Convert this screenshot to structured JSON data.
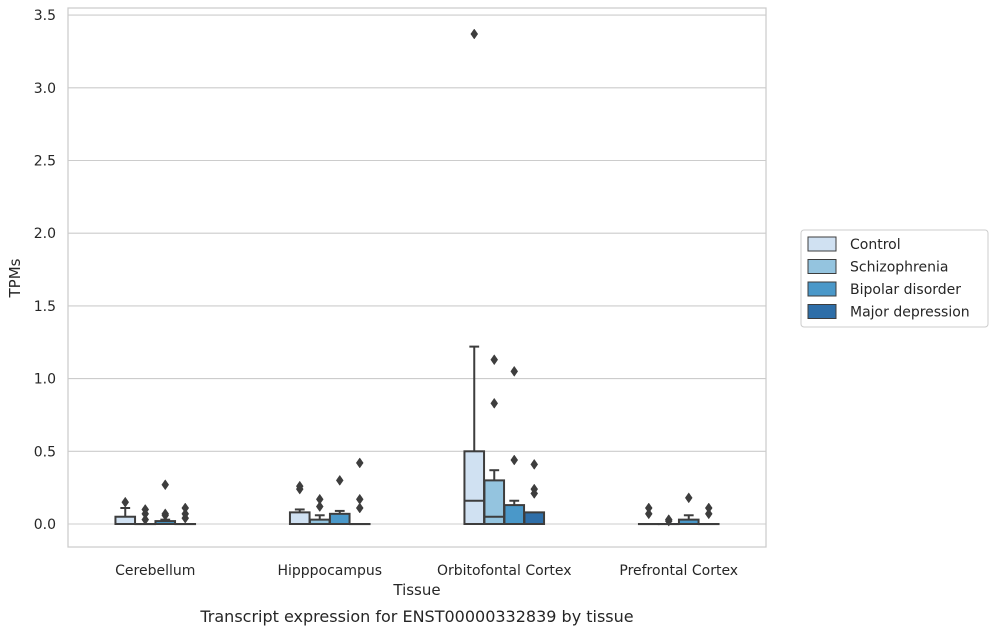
{
  "chart_data": {
    "type": "box",
    "title": "",
    "caption": "Transcript expression for ENST00000332839 by tissue",
    "xlabel": "Tissue",
    "ylabel": "TPMs",
    "ylim": [
      -0.16,
      3.56
    ],
    "yticks": [
      "0.0",
      "0.5",
      "1.0",
      "1.5",
      "2.0",
      "2.5",
      "3.0",
      "3.5"
    ],
    "ytick_values": [
      0,
      0.5,
      1.0,
      1.5,
      2.0,
      2.5,
      3.0,
      3.5
    ],
    "grid": "horizontal",
    "legend_position": "right",
    "categories": [
      "Cerebellum",
      "Hipppocampus",
      "Orbitofontal Cortex",
      "Prefrontal Cortex"
    ],
    "series": [
      {
        "name": "Control",
        "color": "#d0e1f2",
        "boxes": [
          {
            "q1": 0.0,
            "median": 0.0,
            "q3": 0.05,
            "whislo": 0.0,
            "whishi": 0.11,
            "fliers": [
              0.15
            ]
          },
          {
            "q1": 0.0,
            "median": 0.0,
            "q3": 0.08,
            "whislo": 0.0,
            "whishi": 0.1,
            "fliers": [
              0.24,
              0.26
            ]
          },
          {
            "q1": 0.0,
            "median": 0.16,
            "q3": 0.5,
            "whislo": 0.0,
            "whishi": 1.22,
            "fliers": [
              3.37
            ]
          },
          {
            "q1": 0.0,
            "median": 0.0,
            "q3": 0.0,
            "whislo": 0.0,
            "whishi": 0.0,
            "fliers": [
              0.07,
              0.11
            ]
          }
        ]
      },
      {
        "name": "Schizophrenia",
        "color": "#94c4df",
        "boxes": [
          {
            "q1": 0.0,
            "median": 0.0,
            "q3": 0.0,
            "whislo": 0.0,
            "whishi": 0.0,
            "fliers": [
              0.03,
              0.07,
              0.1
            ]
          },
          {
            "q1": 0.0,
            "median": 0.0,
            "q3": 0.03,
            "whislo": 0.0,
            "whishi": 0.06,
            "fliers": [
              0.12,
              0.17
            ]
          },
          {
            "q1": 0.0,
            "median": 0.05,
            "q3": 0.3,
            "whislo": 0.0,
            "whishi": 0.37,
            "fliers": [
              0.83,
              1.13
            ]
          },
          {
            "q1": 0.0,
            "median": 0.0,
            "q3": 0.0,
            "whislo": 0.0,
            "whishi": 0.0,
            "fliers": [
              0.02,
              0.03
            ]
          }
        ]
      },
      {
        "name": "Bipolar disorder",
        "color": "#4a98c9",
        "boxes": [
          {
            "q1": 0.0,
            "median": 0.0,
            "q3": 0.02,
            "whislo": 0.0,
            "whishi": 0.03,
            "fliers": [
              0.06,
              0.07,
              0.27
            ]
          },
          {
            "q1": 0.0,
            "median": 0.0,
            "q3": 0.07,
            "whislo": 0.0,
            "whishi": 0.09,
            "fliers": [
              0.3
            ]
          },
          {
            "q1": 0.0,
            "median": 0.0,
            "q3": 0.13,
            "whislo": 0.0,
            "whishi": 0.16,
            "fliers": [
              0.44,
              1.05
            ]
          },
          {
            "q1": 0.0,
            "median": 0.0,
            "q3": 0.03,
            "whislo": 0.0,
            "whishi": 0.06,
            "fliers": [
              0.18
            ]
          }
        ]
      },
      {
        "name": "Major depression",
        "color": "#2e6ea8",
        "boxes": [
          {
            "q1": 0.0,
            "median": 0.0,
            "q3": 0.0,
            "whislo": 0.0,
            "whishi": 0.0,
            "fliers": [
              0.04,
              0.07,
              0.11
            ]
          },
          {
            "q1": 0.0,
            "median": 0.0,
            "q3": 0.0,
            "whislo": 0.0,
            "whishi": 0.0,
            "fliers": [
              0.11,
              0.17,
              0.42
            ]
          },
          {
            "q1": 0.0,
            "median": 0.0,
            "q3": 0.08,
            "whislo": 0.0,
            "whishi": 0.08,
            "fliers": [
              0.21,
              0.24,
              0.41
            ]
          },
          {
            "q1": 0.0,
            "median": 0.0,
            "q3": 0.0,
            "whislo": 0.0,
            "whishi": 0.0,
            "fliers": [
              0.07,
              0.11
            ]
          }
        ]
      }
    ]
  }
}
